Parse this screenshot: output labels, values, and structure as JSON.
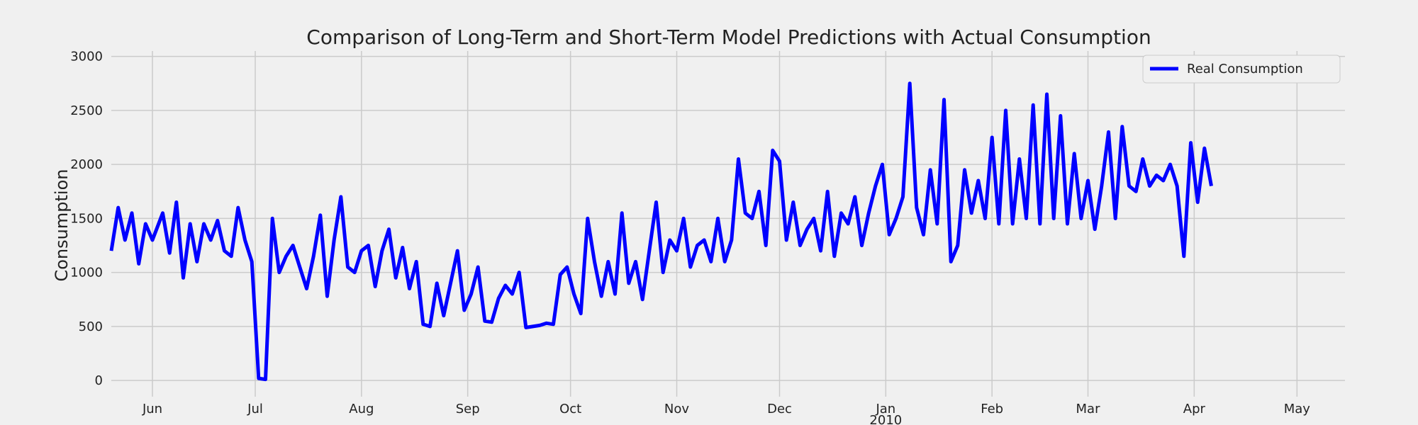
{
  "chart_data": {
    "type": "line",
    "title": "Comparison of Long-Term and Short-Term Model Predictions with Actual Consumption",
    "xlabel": "",
    "ylabel": "Consumption",
    "ylim": [
      -150,
      3050
    ],
    "xlim": [
      "2009-05-20",
      "2010-05-15"
    ],
    "yticks": [
      0,
      500,
      1000,
      1500,
      2000,
      2500,
      3000
    ],
    "xticks": [
      {
        "date": "2009-06-01",
        "label": "Jun"
      },
      {
        "date": "2009-07-01",
        "label": "Jul"
      },
      {
        "date": "2009-08-01",
        "label": "Aug"
      },
      {
        "date": "2009-09-01",
        "label": "Sep"
      },
      {
        "date": "2009-10-01",
        "label": "Oct"
      },
      {
        "date": "2009-11-01",
        "label": "Nov"
      },
      {
        "date": "2009-12-01",
        "label": "Dec"
      },
      {
        "date": "2010-01-01",
        "label": "Jan"
      },
      {
        "date": "2010-02-01",
        "label": "Feb"
      },
      {
        "date": "2010-03-01",
        "label": "Mar"
      },
      {
        "date": "2010-04-01",
        "label": "Apr"
      },
      {
        "date": "2010-05-01",
        "label": "May"
      }
    ],
    "year_label": {
      "date": "2010-01-01",
      "label": "2010"
    },
    "grid": true,
    "legend_position": "top-right",
    "series": [
      {
        "name": "Real Consumption",
        "color": "#0000ff",
        "style": "solid",
        "points": [
          [
            "2009-05-20",
            1200
          ],
          [
            "2009-05-22",
            1600
          ],
          [
            "2009-05-24",
            1300
          ],
          [
            "2009-05-26",
            1550
          ],
          [
            "2009-05-28",
            1080
          ],
          [
            "2009-05-30",
            1450
          ],
          [
            "2009-06-01",
            1300
          ],
          [
            "2009-06-04",
            1550
          ],
          [
            "2009-06-06",
            1180
          ],
          [
            "2009-06-08",
            1650
          ],
          [
            "2009-06-10",
            950
          ],
          [
            "2009-06-12",
            1450
          ],
          [
            "2009-06-14",
            1100
          ],
          [
            "2009-06-16",
            1450
          ],
          [
            "2009-06-18",
            1300
          ],
          [
            "2009-06-20",
            1480
          ],
          [
            "2009-06-22",
            1200
          ],
          [
            "2009-06-24",
            1150
          ],
          [
            "2009-06-26",
            1600
          ],
          [
            "2009-06-28",
            1300
          ],
          [
            "2009-06-30",
            1100
          ],
          [
            "2009-07-02",
            20
          ],
          [
            "2009-07-04",
            10
          ],
          [
            "2009-07-06",
            1500
          ],
          [
            "2009-07-08",
            1000
          ],
          [
            "2009-07-10",
            1150
          ],
          [
            "2009-07-12",
            1250
          ],
          [
            "2009-07-14",
            1050
          ],
          [
            "2009-07-16",
            850
          ],
          [
            "2009-07-18",
            1150
          ],
          [
            "2009-07-20",
            1530
          ],
          [
            "2009-07-22",
            780
          ],
          [
            "2009-07-24",
            1300
          ],
          [
            "2009-07-26",
            1700
          ],
          [
            "2009-07-28",
            1050
          ],
          [
            "2009-07-30",
            1000
          ],
          [
            "2009-08-01",
            1200
          ],
          [
            "2009-08-03",
            1250
          ],
          [
            "2009-08-05",
            870
          ],
          [
            "2009-08-07",
            1200
          ],
          [
            "2009-08-09",
            1400
          ],
          [
            "2009-08-11",
            950
          ],
          [
            "2009-08-13",
            1230
          ],
          [
            "2009-08-15",
            850
          ],
          [
            "2009-08-17",
            1100
          ],
          [
            "2009-08-19",
            520
          ],
          [
            "2009-08-21",
            500
          ],
          [
            "2009-08-23",
            900
          ],
          [
            "2009-08-25",
            600
          ],
          [
            "2009-08-27",
            900
          ],
          [
            "2009-08-29",
            1200
          ],
          [
            "2009-08-31",
            650
          ],
          [
            "2009-09-02",
            800
          ],
          [
            "2009-09-04",
            1050
          ],
          [
            "2009-09-06",
            550
          ],
          [
            "2009-09-08",
            540
          ],
          [
            "2009-09-10",
            760
          ],
          [
            "2009-09-12",
            880
          ],
          [
            "2009-09-14",
            800
          ],
          [
            "2009-09-16",
            1000
          ],
          [
            "2009-09-18",
            490
          ],
          [
            "2009-09-20",
            500
          ],
          [
            "2009-09-22",
            510
          ],
          [
            "2009-09-24",
            530
          ],
          [
            "2009-09-26",
            520
          ],
          [
            "2009-09-28",
            980
          ],
          [
            "2009-09-30",
            1050
          ],
          [
            "2009-10-02",
            800
          ],
          [
            "2009-10-04",
            620
          ],
          [
            "2009-10-06",
            1500
          ],
          [
            "2009-10-08",
            1100
          ],
          [
            "2009-10-10",
            780
          ],
          [
            "2009-10-12",
            1100
          ],
          [
            "2009-10-14",
            800
          ],
          [
            "2009-10-16",
            1550
          ],
          [
            "2009-10-18",
            900
          ],
          [
            "2009-10-20",
            1100
          ],
          [
            "2009-10-22",
            750
          ],
          [
            "2009-10-24",
            1200
          ],
          [
            "2009-10-26",
            1650
          ],
          [
            "2009-10-28",
            1000
          ],
          [
            "2009-10-30",
            1300
          ],
          [
            "2009-11-01",
            1200
          ],
          [
            "2009-11-03",
            1500
          ],
          [
            "2009-11-05",
            1050
          ],
          [
            "2009-11-07",
            1250
          ],
          [
            "2009-11-09",
            1300
          ],
          [
            "2009-11-11",
            1100
          ],
          [
            "2009-11-13",
            1500
          ],
          [
            "2009-11-15",
            1100
          ],
          [
            "2009-11-17",
            1300
          ],
          [
            "2009-11-19",
            2050
          ],
          [
            "2009-11-21",
            1550
          ],
          [
            "2009-11-23",
            1500
          ],
          [
            "2009-11-25",
            1750
          ],
          [
            "2009-11-27",
            1250
          ],
          [
            "2009-11-29",
            2130
          ],
          [
            "2009-12-01",
            2030
          ]
        ],
        "points_note": "",
        "points_b": [
          [
            "2009-12-03",
            1300
          ],
          [
            "2009-12-05",
            1650
          ],
          [
            "2009-12-07",
            1250
          ],
          [
            "2009-12-09",
            1400
          ],
          [
            "2009-12-11",
            1500
          ],
          [
            "2009-12-13",
            1200
          ],
          [
            "2009-12-15",
            1750
          ],
          [
            "2009-12-17",
            1150
          ],
          [
            "2009-12-19",
            1550
          ],
          [
            "2009-12-21",
            1450
          ],
          [
            "2009-12-23",
            1700
          ],
          [
            "2009-12-25",
            1250
          ],
          [
            "2009-12-27",
            1550
          ],
          [
            "2009-12-29",
            1800
          ],
          [
            "2009-12-31",
            2000
          ],
          [
            "2010-01-02",
            1350
          ],
          [
            "2010-01-04",
            1500
          ],
          [
            "2010-01-06",
            1700
          ],
          [
            "2010-01-08",
            2750
          ],
          [
            "2010-01-10",
            1600
          ],
          [
            "2010-01-12",
            1350
          ],
          [
            "2010-01-14",
            1950
          ],
          [
            "2010-01-16",
            1450
          ],
          [
            "2010-01-18",
            2600
          ],
          [
            "2010-01-20",
            1100
          ],
          [
            "2010-01-22",
            1250
          ],
          [
            "2010-01-24",
            1950
          ],
          [
            "2010-01-26",
            1550
          ],
          [
            "2010-01-28",
            1850
          ],
          [
            "2010-01-30",
            1500
          ],
          [
            "2010-02-01",
            2250
          ],
          [
            "2010-02-03",
            1450
          ],
          [
            "2010-02-05",
            2500
          ],
          [
            "2010-02-07",
            1450
          ],
          [
            "2010-02-09",
            2050
          ],
          [
            "2010-02-11",
            1500
          ],
          [
            "2010-02-13",
            2550
          ],
          [
            "2010-02-15",
            1450
          ],
          [
            "2010-02-17",
            2650
          ],
          [
            "2010-02-19",
            1500
          ],
          [
            "2010-02-21",
            2450
          ],
          [
            "2010-02-23",
            1450
          ],
          [
            "2010-02-25",
            2100
          ],
          [
            "2010-02-27",
            1500
          ],
          [
            "2010-03-01",
            1850
          ],
          [
            "2010-03-03",
            1400
          ],
          [
            "2010-03-05",
            1800
          ],
          [
            "2010-03-07",
            2300
          ],
          [
            "2010-03-09",
            1500
          ],
          [
            "2010-03-11",
            2350
          ],
          [
            "2010-03-13",
            1800
          ],
          [
            "2010-03-15",
            1750
          ],
          [
            "2010-03-17",
            2050
          ],
          [
            "2010-03-19",
            1800
          ],
          [
            "2010-03-21",
            1900
          ],
          [
            "2010-03-23",
            1850
          ],
          [
            "2010-03-25",
            2000
          ],
          [
            "2010-03-27",
            1800
          ],
          [
            "2010-03-29",
            1150
          ],
          [
            "2010-03-31",
            2200
          ],
          [
            "2010-04-02",
            1650
          ],
          [
            "2010-04-04",
            2150
          ],
          [
            "2010-04-06",
            1800
          ]
        ]
      }
    ]
  }
}
